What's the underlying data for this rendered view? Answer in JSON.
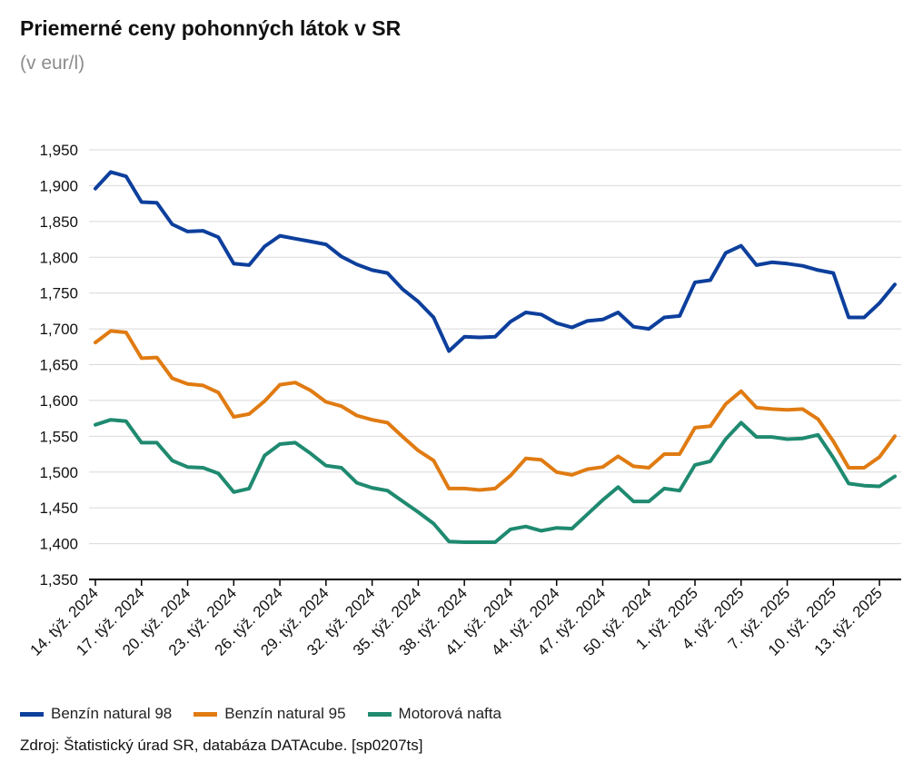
{
  "chart_data": {
    "type": "line",
    "title": "Priemerné ceny pohonných látok v SR",
    "subtitle": "(v eur/l)",
    "ylim": [
      1.35,
      1.95
    ],
    "yticks": [
      "1,350",
      "1,400",
      "1,450",
      "1,500",
      "1,550",
      "1,600",
      "1,650",
      "1,700",
      "1,750",
      "1,800",
      "1,850",
      "1,900",
      "1,950"
    ],
    "grid": true,
    "legend_position": "bottom",
    "x_tick_labels": [
      "14. týž. 2024",
      "17. týž. 2024",
      "20. týž. 2024",
      "23. týž. 2024",
      "26. týž. 2024",
      "29. týž. 2024",
      "32. týž. 2024",
      "35. týž. 2024",
      "38. týž. 2024",
      "41. týž. 2024",
      "44. týž. 2024",
      "47. týž. 2024",
      "50. týž. 2024",
      "1. týž. 2025",
      "4. týž. 2025",
      "7. týž. 2025",
      "10. týž. 2025",
      "13. týž. 2025"
    ],
    "x": [
      "14. týž. 2024",
      "15. týž. 2024",
      "16. týž. 2024",
      "17. týž. 2024",
      "18. týž. 2024",
      "19. týž. 2024",
      "20. týž. 2024",
      "21. týž. 2024",
      "22. týž. 2024",
      "23. týž. 2024",
      "24. týž. 2024",
      "25. týž. 2024",
      "26. týž. 2024",
      "27. týž. 2024",
      "28. týž. 2024",
      "29. týž. 2024",
      "30. týž. 2024",
      "31. týž. 2024",
      "32. týž. 2024",
      "33. týž. 2024",
      "34. týž. 2024",
      "35. týž. 2024",
      "36. týž. 2024",
      "37. týž. 2024",
      "38. týž. 2024",
      "39. týž. 2024",
      "40. týž. 2024",
      "41. týž. 2024",
      "42. týž. 2024",
      "43. týž. 2024",
      "44. týž. 2024",
      "45. týž. 2024",
      "46. týž. 2024",
      "47. týž. 2024",
      "48. týž. 2024",
      "49. týž. 2024",
      "50. týž. 2024",
      "51. týž. 2024",
      "52. týž. 2024",
      "1. týž. 2025",
      "2. týž. 2025",
      "3. týž. 2025",
      "4. týž. 2025",
      "5. týž. 2025",
      "6. týž. 2025",
      "7. týž. 2025",
      "8. týž. 2025",
      "9. týž. 2025",
      "10. týž. 2025",
      "11. týž. 2025",
      "12. týž. 2025",
      "13. týž. 2025",
      "14. týž. 2025"
    ],
    "series": [
      {
        "name": "Benzín natural 98",
        "color": "#0d3f9c",
        "values": [
          1.896,
          1.919,
          1.913,
          1.877,
          1.876,
          1.846,
          1.836,
          1.837,
          1.828,
          1.791,
          1.789,
          1.815,
          1.83,
          1.826,
          1.822,
          1.818,
          1.801,
          1.79,
          1.782,
          1.778,
          1.755,
          1.738,
          1.716,
          1.669,
          1.689,
          1.688,
          1.689,
          1.71,
          1.723,
          1.72,
          1.708,
          1.702,
          1.711,
          1.713,
          1.723,
          1.703,
          1.7,
          1.716,
          1.718,
          1.765,
          1.768,
          1.806,
          1.816,
          1.789,
          1.793,
          1.791,
          1.788,
          1.782,
          1.778,
          1.716,
          1.716,
          1.736,
          1.762
        ]
      },
      {
        "name": "Benzín natural 95",
        "color": "#e07b12",
        "values": [
          1.681,
          1.697,
          1.695,
          1.659,
          1.66,
          1.631,
          1.623,
          1.621,
          1.611,
          1.577,
          1.581,
          1.599,
          1.622,
          1.625,
          1.614,
          1.598,
          1.592,
          1.579,
          1.573,
          1.569,
          1.549,
          1.53,
          1.516,
          1.477,
          1.477,
          1.475,
          1.477,
          1.495,
          1.519,
          1.517,
          1.5,
          1.496,
          1.504,
          1.507,
          1.522,
          1.508,
          1.506,
          1.525,
          1.525,
          1.562,
          1.564,
          1.595,
          1.613,
          1.59,
          1.588,
          1.587,
          1.588,
          1.574,
          1.543,
          1.506,
          1.506,
          1.521,
          1.55
        ]
      },
      {
        "name": "Motorová nafta",
        "color": "#1f8a70",
        "values": [
          1.566,
          1.573,
          1.571,
          1.541,
          1.541,
          1.516,
          1.507,
          1.506,
          1.498,
          1.472,
          1.477,
          1.523,
          1.539,
          1.541,
          1.526,
          1.509,
          1.506,
          1.485,
          1.478,
          1.474,
          1.459,
          1.444,
          1.428,
          1.403,
          1.402,
          1.402,
          1.402,
          1.42,
          1.424,
          1.418,
          1.422,
          1.421,
          1.441,
          1.461,
          1.479,
          1.459,
          1.459,
          1.477,
          1.474,
          1.51,
          1.515,
          1.546,
          1.569,
          1.549,
          1.549,
          1.546,
          1.547,
          1.552,
          1.52,
          1.484,
          1.481,
          1.48,
          1.494
        ]
      }
    ]
  },
  "source": "Zdroj: Štatistický úrad SR, databáza DATAcube. [sp0207ts]"
}
